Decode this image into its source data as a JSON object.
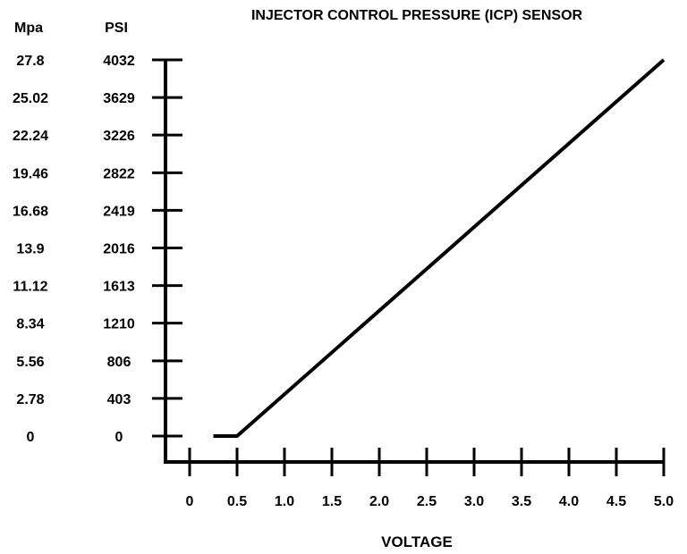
{
  "chart_data": {
    "type": "line",
    "title": "INJECTOR CONTROL PRESSURE (ICP) SENSOR",
    "xlabel": "VOLTAGE",
    "ylabel_left": "Mpa",
    "ylabel_right": "PSI",
    "x_ticks": [
      "0",
      "0.5",
      "1.0",
      "1.5",
      "2.0",
      "2.5",
      "3.0",
      "3.5",
      "4.0",
      "4.5",
      "5.0"
    ],
    "x_tick_values": [
      0,
      0.5,
      1.0,
      1.5,
      2.0,
      2.5,
      3.0,
      3.5,
      4.0,
      4.5,
      5.0
    ],
    "psi_ticks": [
      "0",
      "403",
      "806",
      "1210",
      "1613",
      "2016",
      "2419",
      "2822",
      "3226",
      "3629",
      "4032"
    ],
    "psi_tick_values": [
      0,
      403,
      806,
      1210,
      1613,
      2016,
      2419,
      2822,
      3226,
      3629,
      4032
    ],
    "mpa_ticks": [
      "0",
      "2.78",
      "5.56",
      "8.34",
      "11.12",
      "13.9",
      "16.68",
      "19.46",
      "22.24",
      "25.02",
      "27.8"
    ],
    "xlim": [
      0,
      5.0
    ],
    "ylim": [
      0,
      4032
    ],
    "grid": false,
    "series": [
      {
        "name": "ICP",
        "x": [
          0.25,
          0.5,
          5.0
        ],
        "y": [
          0,
          0,
          4032
        ]
      }
    ]
  }
}
